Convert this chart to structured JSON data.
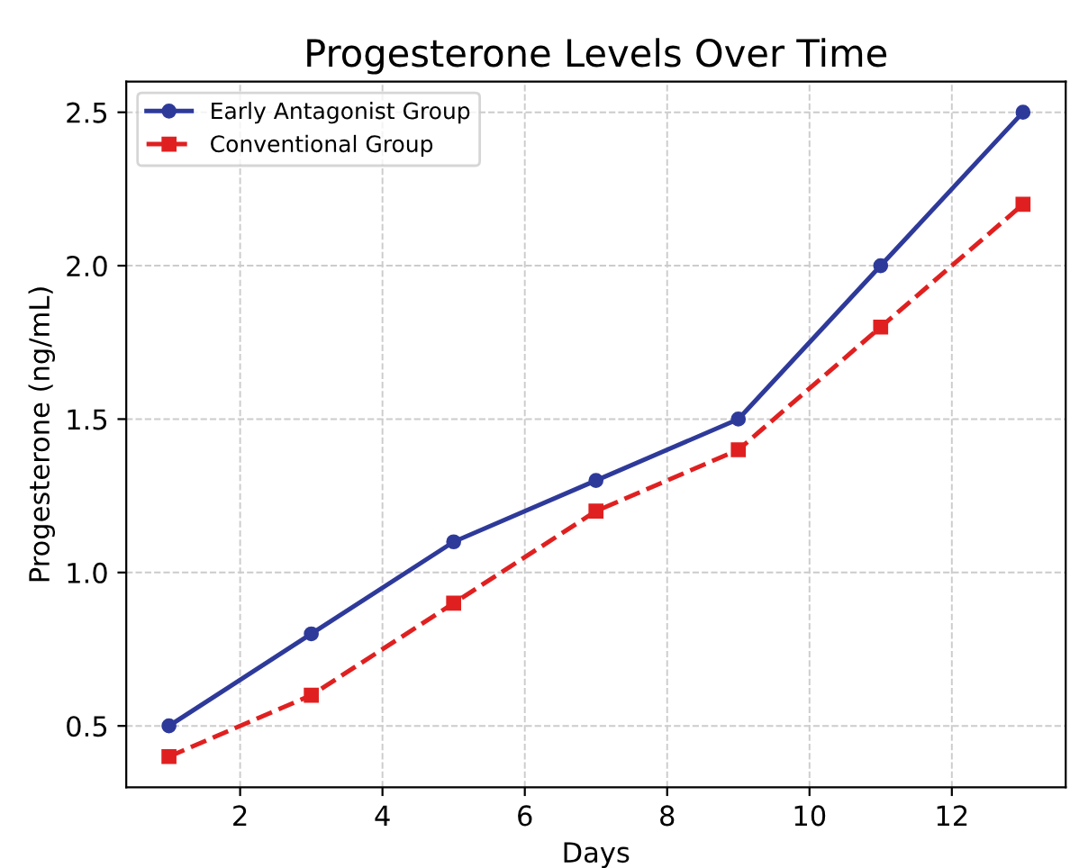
{
  "chart_data": {
    "type": "line",
    "title": "Progesterone Levels Over Time",
    "xlabel": "Days",
    "ylabel": "Progesterone (ng/mL)",
    "x": [
      1,
      3,
      5,
      7,
      9,
      11,
      13
    ],
    "series": [
      {
        "name": "Early Antagonist Group",
        "color": "#2e3a9a",
        "marker": "circle",
        "line_style": "solid",
        "values": [
          0.5,
          0.8,
          1.1,
          1.3,
          1.5,
          2.0,
          2.5
        ]
      },
      {
        "name": "Conventional Group",
        "color": "#e02020",
        "marker": "square",
        "line_style": "dashed",
        "values": [
          0.4,
          0.6,
          0.9,
          1.2,
          1.4,
          1.8,
          2.2
        ]
      }
    ],
    "xlim": [
      0.4,
      13.6
    ],
    "ylim": [
      0.3,
      2.6
    ],
    "xticks": [
      2,
      4,
      6,
      8,
      10,
      12
    ],
    "yticks": [
      0.5,
      {
        "value": 1,
        "label": "1.0"
      },
      1.5,
      {
        "value": 2,
        "label": "2.0"
      },
      2.5
    ],
    "grid": true,
    "legend": "top left"
  }
}
